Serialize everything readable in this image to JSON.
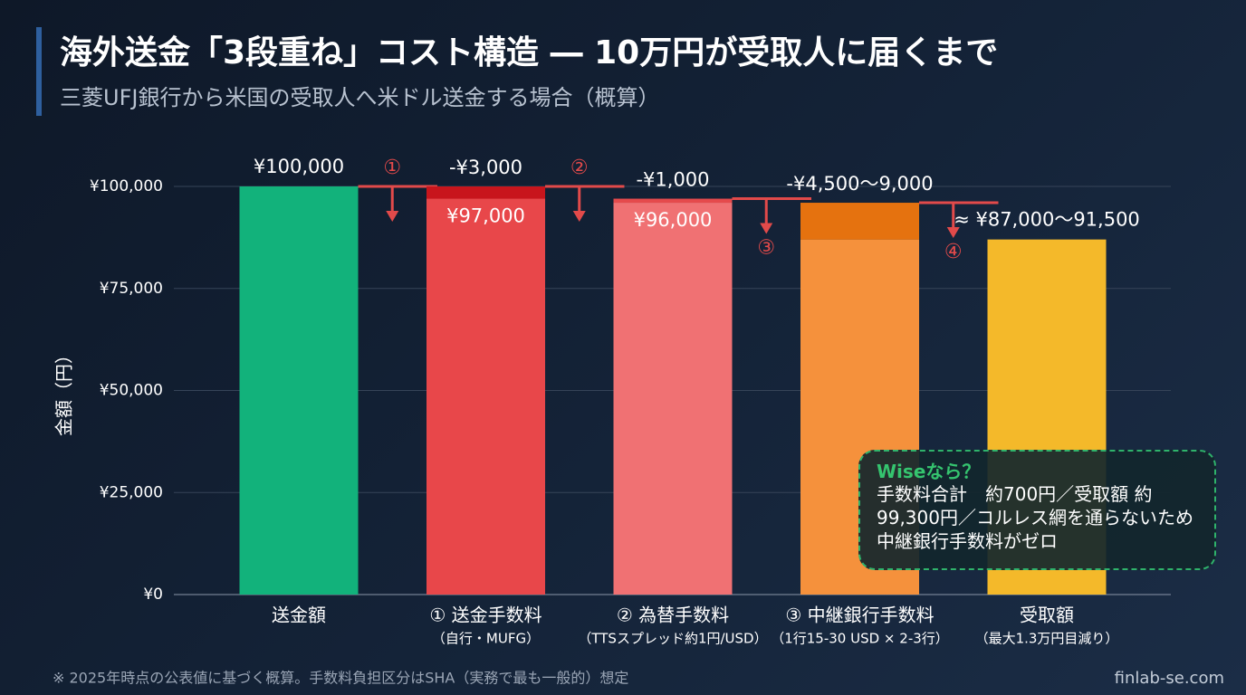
{
  "chart_data": {
    "type": "waterfall",
    "title": "海外送金「3段重ね」コスト構造 ― 10万円が受取人に届くまで",
    "subtitle": "三菱UFJ銀行から米国の受取人へ米ドル送金する場合（概算）",
    "y_label": "金額（円）",
    "categories": [
      "送金額",
      "① 送金手数料",
      "② 為替手数料",
      "③ 中継銀行手数料",
      "受取額"
    ],
    "sublabels": [
      null,
      "（自行・MUFG）",
      "（TTSスプレッド約1円/USD）",
      "（1行15-30 USD × 2-3行）",
      "（最大1.3万円目減り）"
    ],
    "series": [
      {
        "values": [
          100000,
          97000,
          96000,
          87000,
          87000
        ],
        "colors": [
          "#12b27b",
          "#e8474a",
          "#f07173",
          "#f5913c",
          "#f4b92a"
        ],
        "value_labels": [
          "¥100,000",
          "¥97,000",
          "¥96,000",
          null,
          "≈ ¥87,000〜91,500"
        ]
      },
      {
        "values": [
          null,
          -3000,
          -1000,
          -9000,
          null
        ],
        "colors": [
          null,
          "#c8151c",
          "#e54a4c",
          "#e5720f",
          null
        ],
        "value_labels": [
          null,
          "-¥3,000",
          "-¥1,000",
          "-¥4,500〜9,000",
          null
        ]
      }
    ],
    "step_markers": [
      "①",
      "②",
      "③",
      "④"
    ],
    "ylim": [
      0,
      100000
    ],
    "yticks": [
      {
        "value": 0,
        "label": "¥0"
      },
      {
        "value": 25000,
        "label": "¥25,000"
      },
      {
        "value": 50000,
        "label": "¥50,000"
      },
      {
        "value": 75000,
        "label": "¥75,000"
      },
      {
        "value": 100000,
        "label": "¥100,000"
      }
    ],
    "grid": true,
    "arrow_color": "#e24a4a",
    "callout": {
      "title": "Wiseなら？",
      "body": "手数料合計　約700円／受取額 約99,300円／コルレス網を通らないため中継銀行手数料がゼロ"
    },
    "footnote": "※ 2025年時点の公表値に基づく概算。手数料負担区分はSHA（実務で最も一般的）想定",
    "source": "finlab-se.com"
  }
}
